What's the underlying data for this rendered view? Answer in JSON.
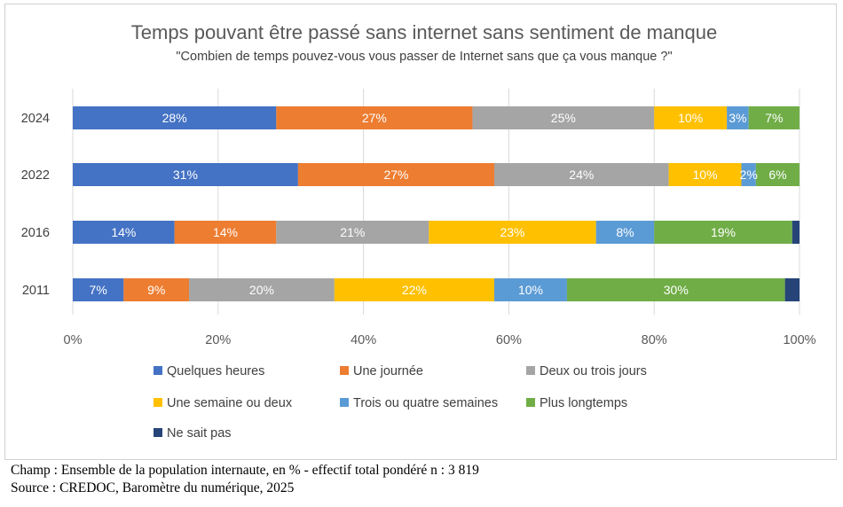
{
  "chart_data": {
    "type": "bar",
    "orientation": "horizontal",
    "stacked": true,
    "percent_stacked": true,
    "title": "Temps pouvant être passé sans internet sans sentiment de manque",
    "subtitle": "\"Combien de temps pouvez-vous vous passer de Internet sans que ça vous manque ?\"",
    "xlabel": "",
    "ylabel": "",
    "xlim": [
      0,
      100
    ],
    "x_ticks": [
      "0%",
      "20%",
      "40%",
      "60%",
      "80%",
      "100%"
    ],
    "gridlines": true,
    "legend_position": "bottom",
    "categories": [
      "2024",
      "2022",
      "2016",
      "2011"
    ],
    "series": [
      {
        "name": "Quelques heures",
        "color": "#4472c4",
        "values": [
          28,
          31,
          14,
          7
        ],
        "labels": [
          "28%",
          "31%",
          "14%",
          "7%"
        ],
        "label_color": "#ffffff"
      },
      {
        "name": "Une journée",
        "color": "#ed7d31",
        "values": [
          27,
          27,
          14,
          9
        ],
        "labels": [
          "27%",
          "27%",
          "14%",
          "9%"
        ],
        "label_color": "#ffffff"
      },
      {
        "name": "Deux ou trois jours",
        "color": "#a5a5a5",
        "values": [
          25,
          24,
          21,
          20
        ],
        "labels": [
          "25%",
          "24%",
          "21%",
          "20%"
        ],
        "label_color": "#ffffff"
      },
      {
        "name": "Une semaine ou deux",
        "color": "#ffc000",
        "values": [
          10,
          10,
          23,
          22
        ],
        "labels": [
          "10%",
          "10%",
          "23%",
          "22%"
        ],
        "label_color": "#ffffff"
      },
      {
        "name": "Trois ou quatre semaines",
        "color": "#5b9bd5",
        "values": [
          3,
          2,
          8,
          10
        ],
        "labels": [
          "3%",
          "2%",
          "8%",
          "10%"
        ],
        "label_color": "#ffffff"
      },
      {
        "name": "Plus longtemps",
        "color": "#70ad47",
        "values": [
          7,
          6,
          19,
          30
        ],
        "labels": [
          "7%",
          "6%",
          "19%",
          "30%"
        ],
        "label_color": "#ffffff"
      },
      {
        "name": "Ne sait pas",
        "color": "#264478",
        "values": [
          0,
          0,
          1,
          2
        ],
        "labels": [
          "",
          "",
          "",
          ""
        ],
        "label_color": "#ffffff"
      }
    ]
  },
  "footnotes": {
    "champ": "Champ : Ensemble de la population internaute, en % - effectif total pondéré n : 3 819",
    "source": "Source : CREDOC, Baromètre du numérique, 2025"
  }
}
